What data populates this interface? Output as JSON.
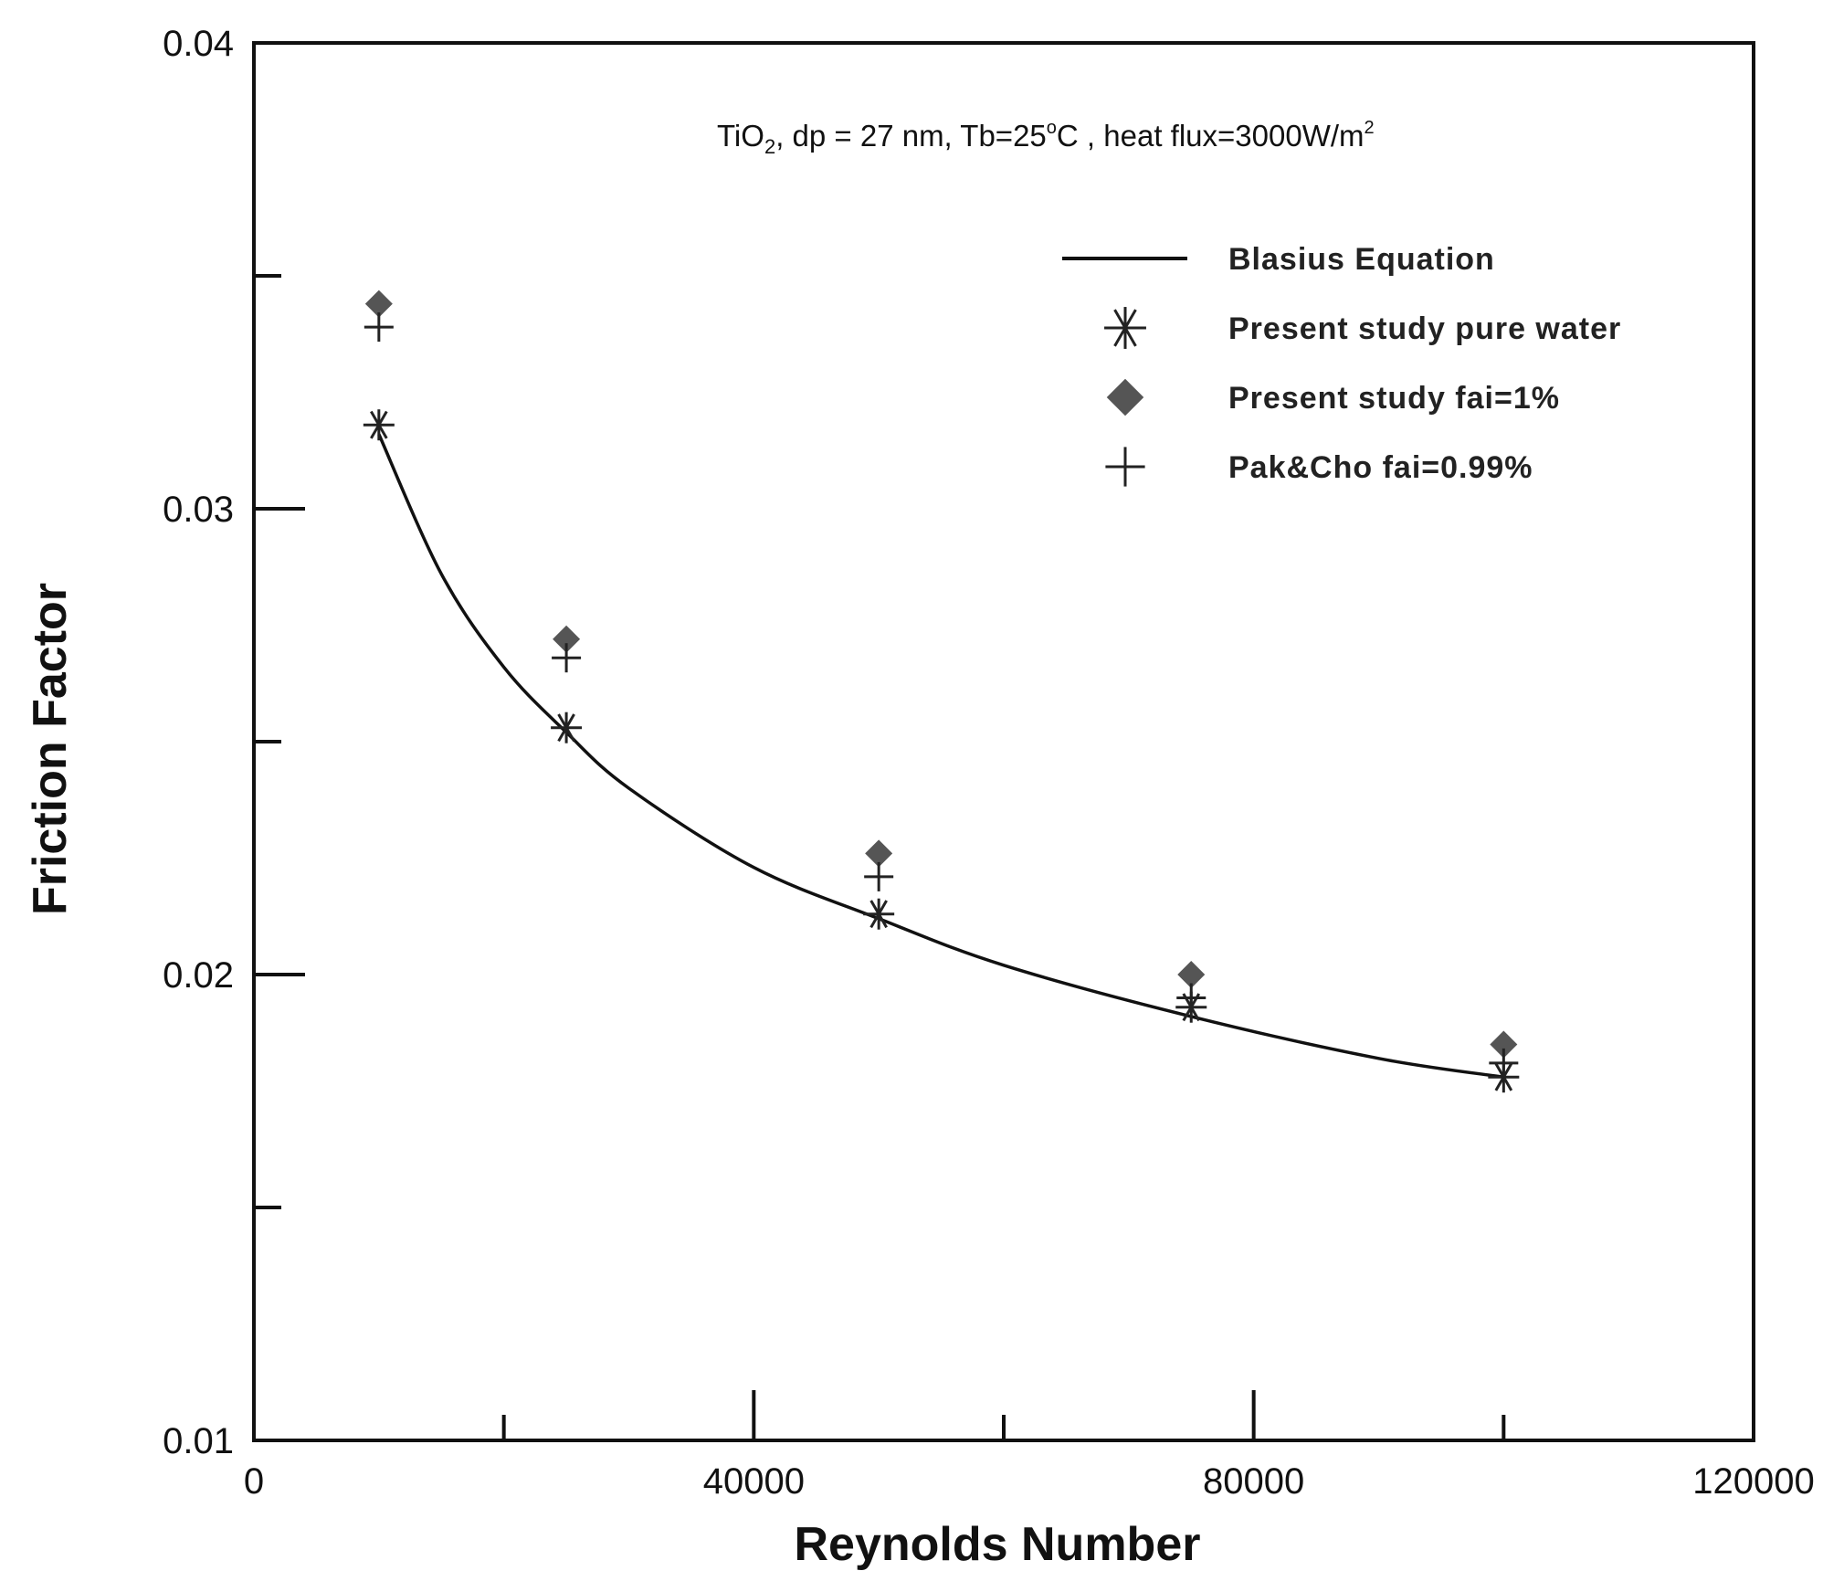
{
  "chart_data": {
    "type": "scatter",
    "annotation": {
      "parts": [
        "TiO",
        "2",
        ", dp = 27 nm, Tb=25",
        "o",
        "C , heat flux=3000W/m",
        "2"
      ]
    },
    "xlabel": "Reynolds Number",
    "ylabel": "Friction Factor",
    "xlim": [
      0,
      120000
    ],
    "ylim": [
      0.01,
      0.04
    ],
    "x_tick_labels": [
      "0",
      "40000",
      "80000",
      "120000"
    ],
    "y_tick_labels": [
      "0.01",
      "0.02",
      "0.03",
      "0.04"
    ],
    "x_ticks_major": [
      0,
      40000,
      80000,
      120000
    ],
    "x_ticks_minor": [
      20000,
      60000,
      100000
    ],
    "y_ticks_major": [
      0.01,
      0.02,
      0.03,
      0.04
    ],
    "y_ticks_minor": [
      0.015,
      0.025,
      0.035
    ],
    "legend_position": "top-right",
    "series": [
      {
        "name": "Blasius Equation",
        "kind": "line",
        "marker": "line",
        "color": "#111111",
        "x": [
          10000,
          15000,
          20000,
          25000,
          30000,
          40000,
          50000,
          60000,
          75000,
          90000,
          100000
        ],
        "y": [
          0.0316,
          0.0286,
          0.0266,
          0.0252,
          0.024,
          0.0223,
          0.0212,
          0.0202,
          0.0191,
          0.0182,
          0.0178
        ]
      },
      {
        "name": "Present study pure water",
        "kind": "scatter",
        "marker": "asterisk",
        "color": "#222222",
        "x": [
          10000,
          25000,
          50000,
          75000,
          100000
        ],
        "y": [
          0.0318,
          0.0253,
          0.0213,
          0.0193,
          0.0178
        ]
      },
      {
        "name": "Present study fai=1%",
        "kind": "scatter",
        "marker": "diamond",
        "color": "#555555",
        "x": [
          10000,
          25000,
          50000,
          75000,
          100000
        ],
        "y": [
          0.0344,
          0.0272,
          0.0226,
          0.02,
          0.0185
        ]
      },
      {
        "name": "Pak&Cho fai=0.99%",
        "kind": "scatter",
        "marker": "plus",
        "color": "#222222",
        "x": [
          10000,
          25000,
          50000,
          75000,
          100000
        ],
        "y": [
          0.0339,
          0.0268,
          0.0221,
          0.0195,
          0.0181
        ]
      }
    ]
  }
}
